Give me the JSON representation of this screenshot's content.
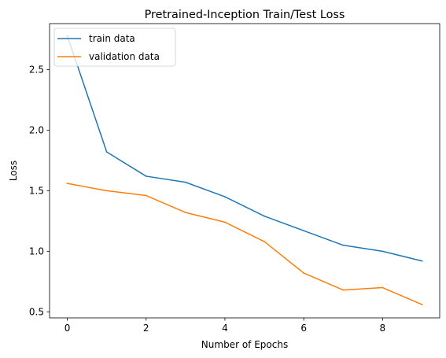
{
  "chart_data": {
    "type": "line",
    "title": "Pretrained-Inception Train/Test Loss",
    "xlabel": "Number of Epochs",
    "ylabel": "Loss",
    "x": [
      0,
      1,
      2,
      3,
      4,
      5,
      6,
      7,
      8,
      9
    ],
    "xlim": [
      -0.45,
      9.45
    ],
    "ylim": [
      0.45,
      2.88
    ],
    "xticks": [
      0,
      2,
      4,
      6,
      8
    ],
    "yticks": [
      0.5,
      1.0,
      1.5,
      2.0,
      2.5
    ],
    "xtick_labels": [
      "0",
      "2",
      "4",
      "6",
      "8"
    ],
    "ytick_labels": [
      "0.5",
      "1.0",
      "1.5",
      "2.0",
      "2.5"
    ],
    "grid": false,
    "legend_position": "top-left",
    "series": [
      {
        "name": "train data",
        "color": "#1f77b4",
        "values": [
          2.78,
          1.82,
          1.62,
          1.57,
          1.45,
          1.29,
          1.17,
          1.05,
          1.0,
          0.92
        ]
      },
      {
        "name": "validation data",
        "color": "#ff7f0e",
        "values": [
          1.56,
          1.5,
          1.46,
          1.32,
          1.24,
          1.08,
          0.82,
          0.68,
          0.7,
          0.56
        ]
      }
    ]
  }
}
